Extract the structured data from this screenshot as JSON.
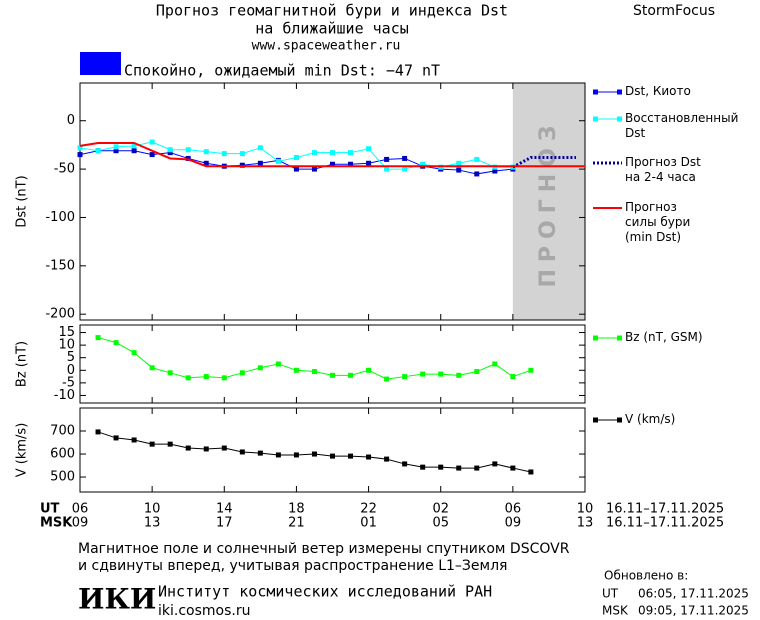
{
  "header": {
    "title_line1": "Прогноз геомагнитной бури и индекса Dst",
    "title_line2": "на ближайшие часы",
    "url": "www.spaceweather.ru",
    "brand": "StormFocus"
  },
  "status": {
    "text": "Спокойно, ожидаемый min Dst: −47 nT",
    "color": "#0000ff"
  },
  "chart_data": [
    {
      "type": "line",
      "y_label": "Dst (nT)",
      "xlim": [
        0,
        28
      ],
      "ylim": [
        -206,
        39
      ],
      "yticks": [
        0,
        -50,
        -100,
        -150,
        -200
      ],
      "forecast_region": {
        "x": [
          24,
          28
        ],
        "label": "ПРОГНОЗ",
        "color": "#d3d3d3"
      },
      "series": [
        {
          "name": "Dst, Киото",
          "color": "#0000ff",
          "marker": "square",
          "x": [
            0,
            1,
            2,
            3,
            4,
            5,
            6,
            7,
            8,
            9,
            10,
            11,
            12,
            13,
            14,
            15,
            16,
            17,
            18,
            19,
            20,
            21,
            22,
            23,
            24
          ],
          "values": [
            -35,
            -31,
            -31,
            -31,
            -35,
            -33,
            -39,
            -44,
            -47,
            -46,
            -44,
            -41,
            -50,
            -50,
            -45,
            -45,
            -44,
            -40,
            -39,
            -47,
            -50,
            -51,
            -55,
            -52,
            -50
          ]
        },
        {
          "name": "Восстановленный\nDst",
          "color": "#00ffff",
          "marker": "square",
          "x": [
            0,
            1,
            2,
            3,
            4,
            5,
            6,
            7,
            8,
            9,
            10,
            11,
            12,
            13,
            14,
            15,
            16,
            17,
            18,
            19,
            20,
            21,
            22,
            23,
            24
          ],
          "values": [
            -28,
            -31,
            -27,
            -26,
            -22,
            -30,
            -30,
            -32,
            -34,
            -34,
            -28,
            -42,
            -38,
            -33,
            -33,
            -33,
            -29,
            -50,
            -50,
            -45,
            -48,
            -44,
            -40,
            -48,
            -48
          ]
        },
        {
          "name": "Прогноз Dst\nна 2-4 часа",
          "color": "#0000a0",
          "dash": "dotted",
          "x": [
            24,
            25,
            27.5
          ],
          "values": [
            -48,
            -38,
            -38
          ]
        },
        {
          "name": "Прогноз\nсилы бури\n(min Dst)",
          "color": "#ff0000",
          "x": [
            0,
            1,
            3,
            5,
            6,
            7,
            28
          ],
          "values": [
            -26,
            -23,
            -23,
            -39,
            -40,
            -47,
            -47
          ]
        }
      ]
    },
    {
      "type": "line",
      "y_label": "Bz (nT)",
      "xlim": [
        0,
        28
      ],
      "ylim": [
        -13,
        18
      ],
      "yticks": [
        15,
        10,
        5,
        0,
        -5,
        -10
      ],
      "series": [
        {
          "name": "Bz (nT, GSM)",
          "color": "#00ff00",
          "marker": "square",
          "x": [
            1,
            2,
            3,
            4,
            5,
            6,
            7,
            8,
            9,
            10,
            11,
            12,
            13,
            14,
            15,
            16,
            17,
            18,
            19,
            20,
            21,
            22,
            23,
            24,
            25
          ],
          "values": [
            13,
            11,
            7,
            1,
            -1,
            -3,
            -2.5,
            -3,
            -1,
            1,
            2.5,
            0,
            -0.5,
            -2,
            -2,
            0,
            -3.5,
            -2.5,
            -1.5,
            -1.5,
            -2,
            -0.5,
            2.5,
            -2.5,
            0
          ]
        }
      ]
    },
    {
      "type": "line",
      "y_label": "V (km/s)",
      "xlim": [
        0,
        28
      ],
      "ylim": [
        435,
        800
      ],
      "yticks": [
        700,
        600,
        500
      ],
      "xticks": [
        {
          "value": 0,
          "label": "06"
        },
        {
          "value": 4,
          "label": "10"
        },
        {
          "value": 8,
          "label": "14"
        },
        {
          "value": 12,
          "label": "18"
        },
        {
          "value": 16,
          "label": "22"
        },
        {
          "value": 20,
          "label": "02"
        },
        {
          "value": 24,
          "label": "06"
        },
        {
          "value": 28,
          "label": "10"
        }
      ],
      "xticks_msk": [
        {
          "value": 0,
          "label": "09"
        },
        {
          "value": 4,
          "label": "13"
        },
        {
          "value": 8,
          "label": "17"
        },
        {
          "value": 12,
          "label": "21"
        },
        {
          "value": 16,
          "label": "01"
        },
        {
          "value": 20,
          "label": "05"
        },
        {
          "value": 24,
          "label": "09"
        },
        {
          "value": 28,
          "label": "13"
        }
      ],
      "x_label": "UT",
      "x_label_msk": "MSK",
      "date_range": "16.11–17.11.2025",
      "series": [
        {
          "name": "V (km/s)",
          "color": "#000000",
          "marker": "square",
          "x": [
            1,
            2,
            3,
            4,
            5,
            6,
            7,
            8,
            9,
            10,
            11,
            12,
            13,
            14,
            15,
            16,
            17,
            18,
            19,
            20,
            21,
            22,
            23,
            24,
            25
          ],
          "values": [
            696,
            670,
            661,
            643,
            643,
            626,
            622,
            626,
            609,
            604,
            596,
            596,
            600,
            591,
            591,
            587,
            578,
            557,
            543,
            543,
            539,
            539,
            557,
            539,
            522
          ]
        }
      ]
    }
  ],
  "footer": {
    "note_line1": "Магнитное поле и солнечный ветер измерены спутником DSCOVR",
    "note_line2": "и сдвинуты вперед, учитывая распространение L1–Земля",
    "logo": "ИКИ",
    "institute": "Институт космических исследований РАН",
    "site": "iki.cosmos.ru",
    "updated": {
      "label": "Обновлено в:",
      "ut": "UT",
      "ut_time": "06:05, 17.11.2025",
      "msk": "MSK",
      "msk_time": "09:05, 17.11.2025"
    }
  }
}
